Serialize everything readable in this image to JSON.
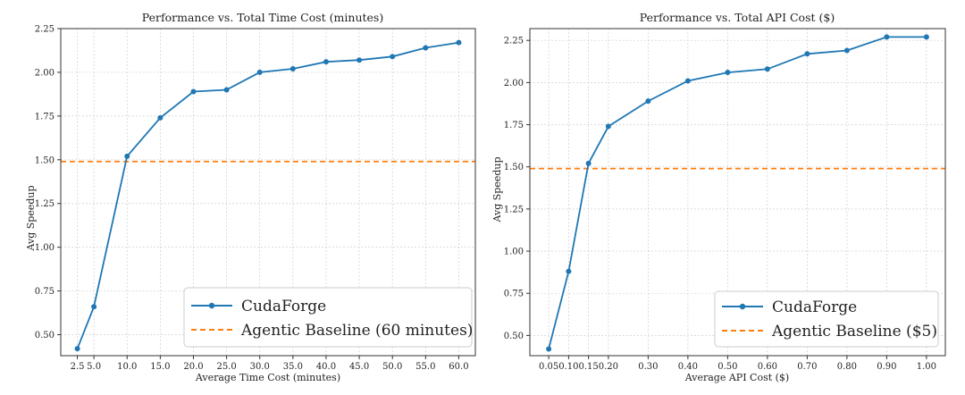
{
  "chart_data": [
    {
      "type": "line",
      "title": "Performance vs. Total Time Cost (minutes)",
      "xlabel": "Average Time Cost (minutes)",
      "ylabel": "Avg Speedup",
      "x_ticks": [
        "2.5",
        "5.0",
        "10.0",
        "15.0",
        "20.0",
        "25.0",
        "30.0",
        "35.0",
        "40.0",
        "45.0",
        "50.0",
        "55.0",
        "60.0"
      ],
      "x": [
        2.5,
        5.0,
        10.0,
        15.0,
        20.0,
        25.0,
        30.0,
        35.0,
        40.0,
        45.0,
        50.0,
        55.0,
        60.0
      ],
      "y_ticks": [
        "0.50",
        "0.75",
        "1.00",
        "1.25",
        "1.50",
        "1.75",
        "2.00",
        "2.25"
      ],
      "ylim": [
        0.38,
        2.25
      ],
      "xlim": [
        0.0,
        62.5
      ],
      "series": [
        {
          "name": "CudaForge",
          "color": "#1f77b4",
          "values": [
            0.42,
            0.66,
            1.52,
            1.74,
            1.89,
            1.9,
            2.0,
            2.02,
            2.06,
            2.07,
            2.09,
            2.14,
            2.17
          ]
        }
      ],
      "baseline": {
        "name": "Agentic Baseline (60 minutes)",
        "value": 1.49,
        "color": "#ff7f0e"
      },
      "grid": true,
      "legend_position": "lower-right"
    },
    {
      "type": "line",
      "title": "Performance vs. Total API Cost ($)",
      "xlabel": "Average API Cost ($)",
      "ylabel": "Avg Speedup",
      "x_ticks": [
        "0.05",
        "0.10",
        "0.15",
        "0.20",
        "0.30",
        "0.40",
        "0.50",
        "0.60",
        "0.70",
        "0.80",
        "0.90",
        "1.00"
      ],
      "x": [
        0.05,
        0.1,
        0.15,
        0.2,
        0.3,
        0.4,
        0.5,
        0.6,
        0.7,
        0.8,
        0.9,
        1.0
      ],
      "y_ticks": [
        "0.50",
        "0.75",
        "1.00",
        "1.25",
        "1.50",
        "1.75",
        "2.00",
        "2.25"
      ],
      "ylim": [
        0.38,
        2.32
      ],
      "xlim": [
        0.0025,
        1.0475
      ],
      "series": [
        {
          "name": "CudaForge",
          "color": "#1f77b4",
          "values": [
            0.42,
            0.88,
            1.52,
            1.74,
            1.89,
            2.01,
            2.06,
            2.08,
            2.17,
            2.19,
            2.27,
            2.27
          ]
        }
      ],
      "baseline": {
        "name": "Agentic Baseline ($5)",
        "value": 1.49,
        "color": "#ff7f0e"
      },
      "grid": true,
      "legend_position": "lower-right"
    }
  ]
}
